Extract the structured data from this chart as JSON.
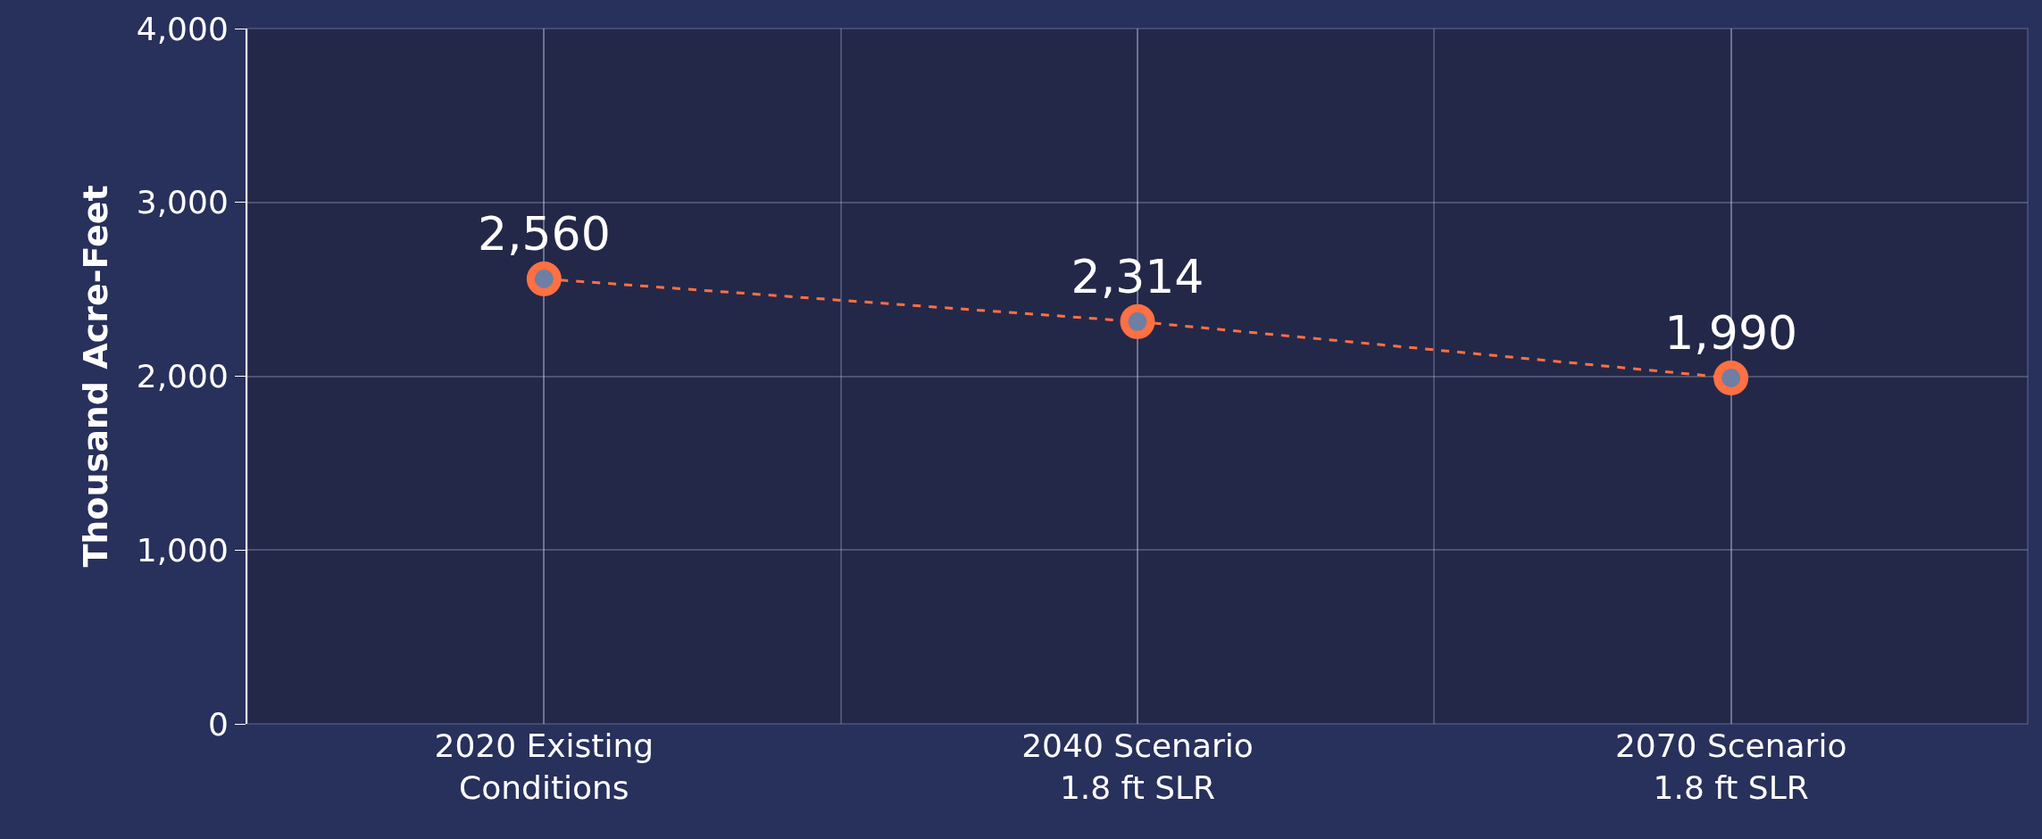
{
  "chart_data": {
    "type": "line",
    "ylabel": "Thousand Acre-Feet",
    "categories": [
      "2020 Existing\nConditions",
      "2040 Scenario\n1.8 ft SLR",
      "2070 Scenario\n1.8 ft SLR"
    ],
    "series": [
      {
        "color": "#ff7043",
        "values": [
          2560,
          2314,
          1990
        ],
        "value_labels": [
          "2,560",
          "2,314",
          "1,990"
        ]
      }
    ],
    "ylim": [
      0,
      4000
    ],
    "yticks": [
      {
        "value": 0,
        "label": "0"
      },
      {
        "value": 1000,
        "label": "1,000"
      },
      {
        "value": 2000,
        "label": "2,000"
      },
      {
        "value": 3000,
        "label": "3,000"
      },
      {
        "value": 4000,
        "label": "4,000"
      }
    ],
    "grid": true,
    "marker": "circle",
    "line_style": "dashed"
  }
}
